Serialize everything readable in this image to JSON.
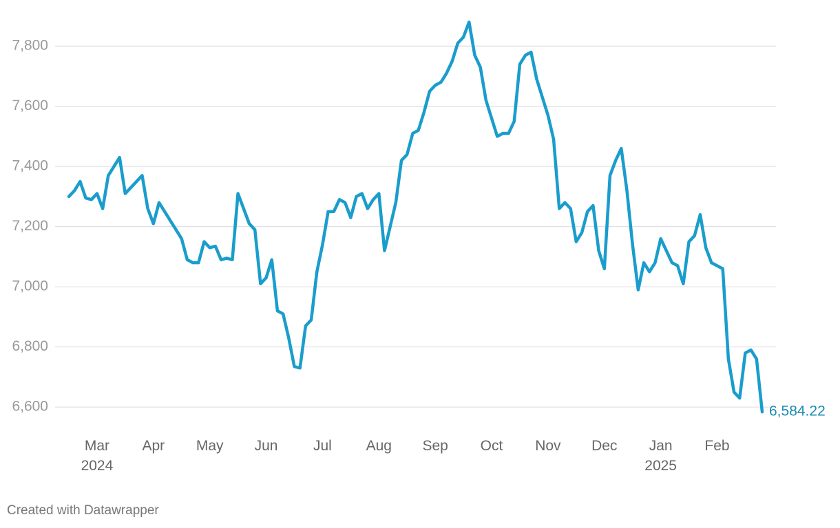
{
  "chart_data": {
    "type": "line",
    "categories": [
      null,
      null,
      null,
      null,
      null,
      "Mar\n2024",
      null,
      null,
      null,
      null,
      null,
      null,
      null,
      null,
      null,
      "Apr",
      null,
      null,
      null,
      null,
      null,
      null,
      null,
      null,
      null,
      "May",
      null,
      null,
      null,
      null,
      null,
      null,
      null,
      null,
      null,
      "Jun",
      null,
      null,
      null,
      null,
      null,
      null,
      null,
      null,
      null,
      "Jul",
      null,
      null,
      null,
      null,
      null,
      null,
      null,
      null,
      null,
      "Aug",
      null,
      null,
      null,
      null,
      null,
      null,
      null,
      null,
      null,
      "Sep",
      null,
      null,
      null,
      null,
      null,
      null,
      null,
      null,
      null,
      "Oct",
      null,
      null,
      null,
      null,
      null,
      null,
      null,
      null,
      null,
      "Nov",
      null,
      null,
      null,
      null,
      null,
      null,
      null,
      null,
      null,
      "Dec",
      null,
      null,
      null,
      null,
      null,
      null,
      null,
      null,
      null,
      "Jan\n2025",
      null,
      null,
      null,
      null,
      null,
      null,
      null,
      null,
      null,
      "Feb",
      null,
      null,
      null,
      null,
      null,
      null,
      null,
      null
    ],
    "values": [
      7300,
      7320,
      7350,
      7295,
      7290,
      7310,
      7260,
      7370,
      7400,
      7430,
      7310,
      7330,
      7350,
      7370,
      7260,
      7210,
      7280,
      7250,
      7220,
      7190,
      7160,
      7090,
      7080,
      7080,
      7150,
      7130,
      7135,
      7090,
      7095,
      7090,
      7310,
      7260,
      7210,
      7190,
      7010,
      7030,
      7090,
      6920,
      6910,
      6830,
      6735,
      6730,
      6870,
      6890,
      7050,
      7140,
      7250,
      7250,
      7290,
      7280,
      7230,
      7300,
      7310,
      7260,
      7290,
      7310,
      7120,
      7200,
      7280,
      7420,
      7440,
      7510,
      7520,
      7580,
      7650,
      7670,
      7680,
      7710,
      7750,
      7810,
      7830,
      7880,
      7770,
      7730,
      7620,
      7560,
      7500,
      7510,
      7510,
      7550,
      7740,
      7770,
      7780,
      7690,
      7630,
      7570,
      7490,
      7260,
      7280,
      7260,
      7150,
      7180,
      7250,
      7270,
      7120,
      7060,
      7370,
      7420,
      7460,
      7320,
      7140,
      6990,
      7080,
      7050,
      7080,
      7160,
      7120,
      7080,
      7070,
      7010,
      7150,
      7170,
      7240,
      7130,
      7080,
      7070,
      7060,
      6760,
      6650,
      6630,
      6780,
      6790,
      6760,
      6584.22
    ],
    "value_labels": [
      null,
      null,
      null,
      null,
      null,
      null,
      null,
      null,
      null,
      null,
      null,
      null,
      null,
      null,
      null,
      null,
      null,
      null,
      null,
      null,
      null,
      null,
      null,
      null,
      null,
      null,
      null,
      null,
      null,
      null,
      null,
      null,
      null,
      null,
      null,
      null,
      null,
      null,
      null,
      null,
      null,
      null,
      null,
      null,
      null,
      null,
      null,
      null,
      null,
      null,
      null,
      null,
      null,
      null,
      null,
      null,
      null,
      null,
      null,
      null,
      null,
      null,
      null,
      null,
      null,
      null,
      null,
      null,
      null,
      null,
      null,
      null,
      null,
      null,
      null,
      null,
      null,
      null,
      null,
      null,
      null,
      null,
      null,
      null,
      null,
      null,
      null,
      null,
      null,
      null,
      null,
      null,
      null,
      null,
      null,
      null,
      null,
      null,
      null,
      null,
      null,
      null,
      null,
      null,
      null,
      null,
      null,
      null,
      null,
      null,
      null,
      null,
      null,
      null,
      null,
      null,
      null,
      null,
      null,
      null,
      null,
      null,
      null,
      "6,584.22"
    ],
    "color": "#1a9dcc",
    "label_color": "#1a8ab3",
    "ylim": [
      6525,
      7910
    ],
    "yticks": [
      {
        "value": 6600,
        "label": "6,600"
      },
      {
        "value": 6800,
        "label": "6,800"
      },
      {
        "value": 7000,
        "label": "7,000"
      },
      {
        "value": 7200,
        "label": "7,200"
      },
      {
        "value": 7400,
        "label": "7,400"
      },
      {
        "value": 7600,
        "label": "7,600"
      },
      {
        "value": 7800,
        "label": "7,800"
      }
    ],
    "grid": true
  },
  "credit": "Created with Datawrapper"
}
